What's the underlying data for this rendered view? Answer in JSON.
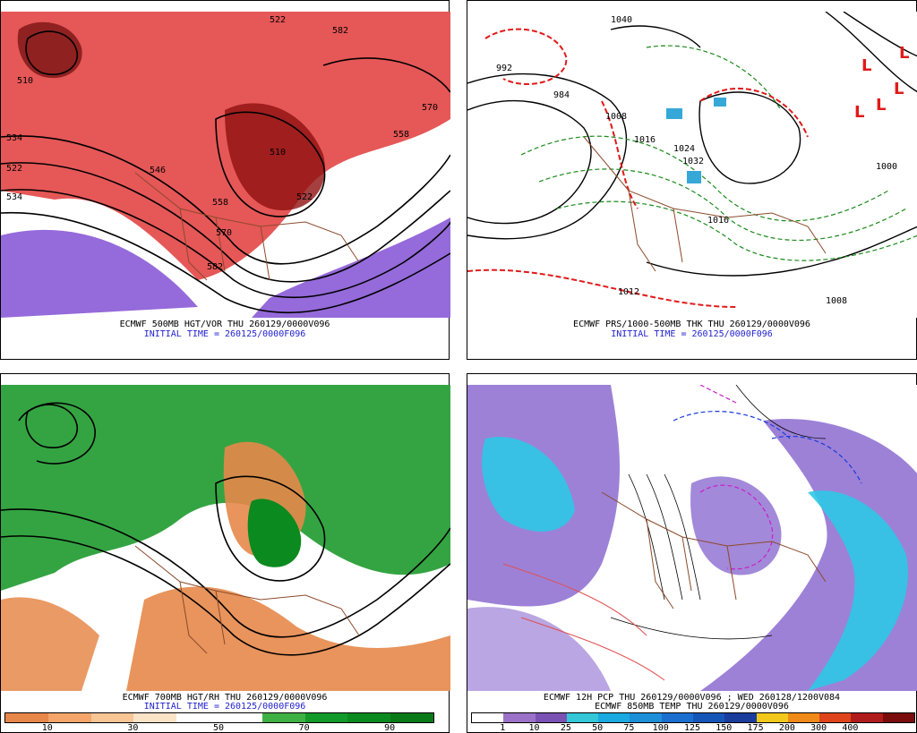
{
  "panels": {
    "p1": {
      "caption_line1": "ECMWF 500MB HGT/VOR THU 260129/0000V096",
      "caption_line2": "INITIAL TIME = 260125/0000F096",
      "labels": [
        "522",
        "534",
        "510",
        "522",
        "534",
        "546",
        "558",
        "570",
        "582",
        "522",
        "510",
        "558",
        "570",
        "582"
      ]
    },
    "p2": {
      "caption_line1": "ECMWF PRS/1000-500MB THK THU 260129/0000V096",
      "caption_line2": "INITIAL TIME = 260125/0000F096",
      "labels": [
        "1040",
        "992",
        "984",
        "1008",
        "1016",
        "1024",
        "1032",
        "1000",
        "1016",
        "1008",
        "1012"
      ],
      "low_marks": [
        "L",
        "L",
        "L",
        "L",
        "L"
      ]
    },
    "p3": {
      "caption_line1": "ECMWF 700MB HGT/RH THU 260129/0000V096",
      "caption_line2": "INITIAL TIME = 260125/0000F096",
      "colorbar": [
        "#e8874a",
        "#f4a66a",
        "#f8c595",
        "#fbe3c8",
        "#ffffff",
        "#ffffff",
        "#3fb043",
        "#119a2a",
        "#0b8a1f",
        "#0a7a19"
      ],
      "ticks": [
        "10",
        "30",
        "50",
        "70",
        "90"
      ]
    },
    "p4": {
      "caption_line1": "ECMWF 12H PCP THU 260129/0000V096 ; WED 260128/1200V084",
      "caption_line2": "ECMWF 850MB TEMP THU 260129/0000V096",
      "colorbar": [
        "#ffffff",
        "#9b72c8",
        "#7a52b4",
        "#35c6d8",
        "#1aa9e0",
        "#1c8fd8",
        "#1a6ed0",
        "#1655b8",
        "#1a3c9c",
        "#f2c81c",
        "#f08a18",
        "#e0441c",
        "#b01c1c",
        "#7a0c0c"
      ],
      "ticks": [
        "1",
        "10",
        "25",
        "50",
        "75",
        "100",
        "125",
        "150",
        "175",
        "200",
        "300",
        "400"
      ]
    }
  },
  "colors": {
    "vort_red": "#d42a2a",
    "vort_purple": "#8a5ad6",
    "rh_green": "#1e9a2e",
    "rh_brown": "#e6884a",
    "pcp_purple": "#8c6bd0",
    "pcp_cyan": "#2ec8e6",
    "borders": "#8b4a2b"
  }
}
